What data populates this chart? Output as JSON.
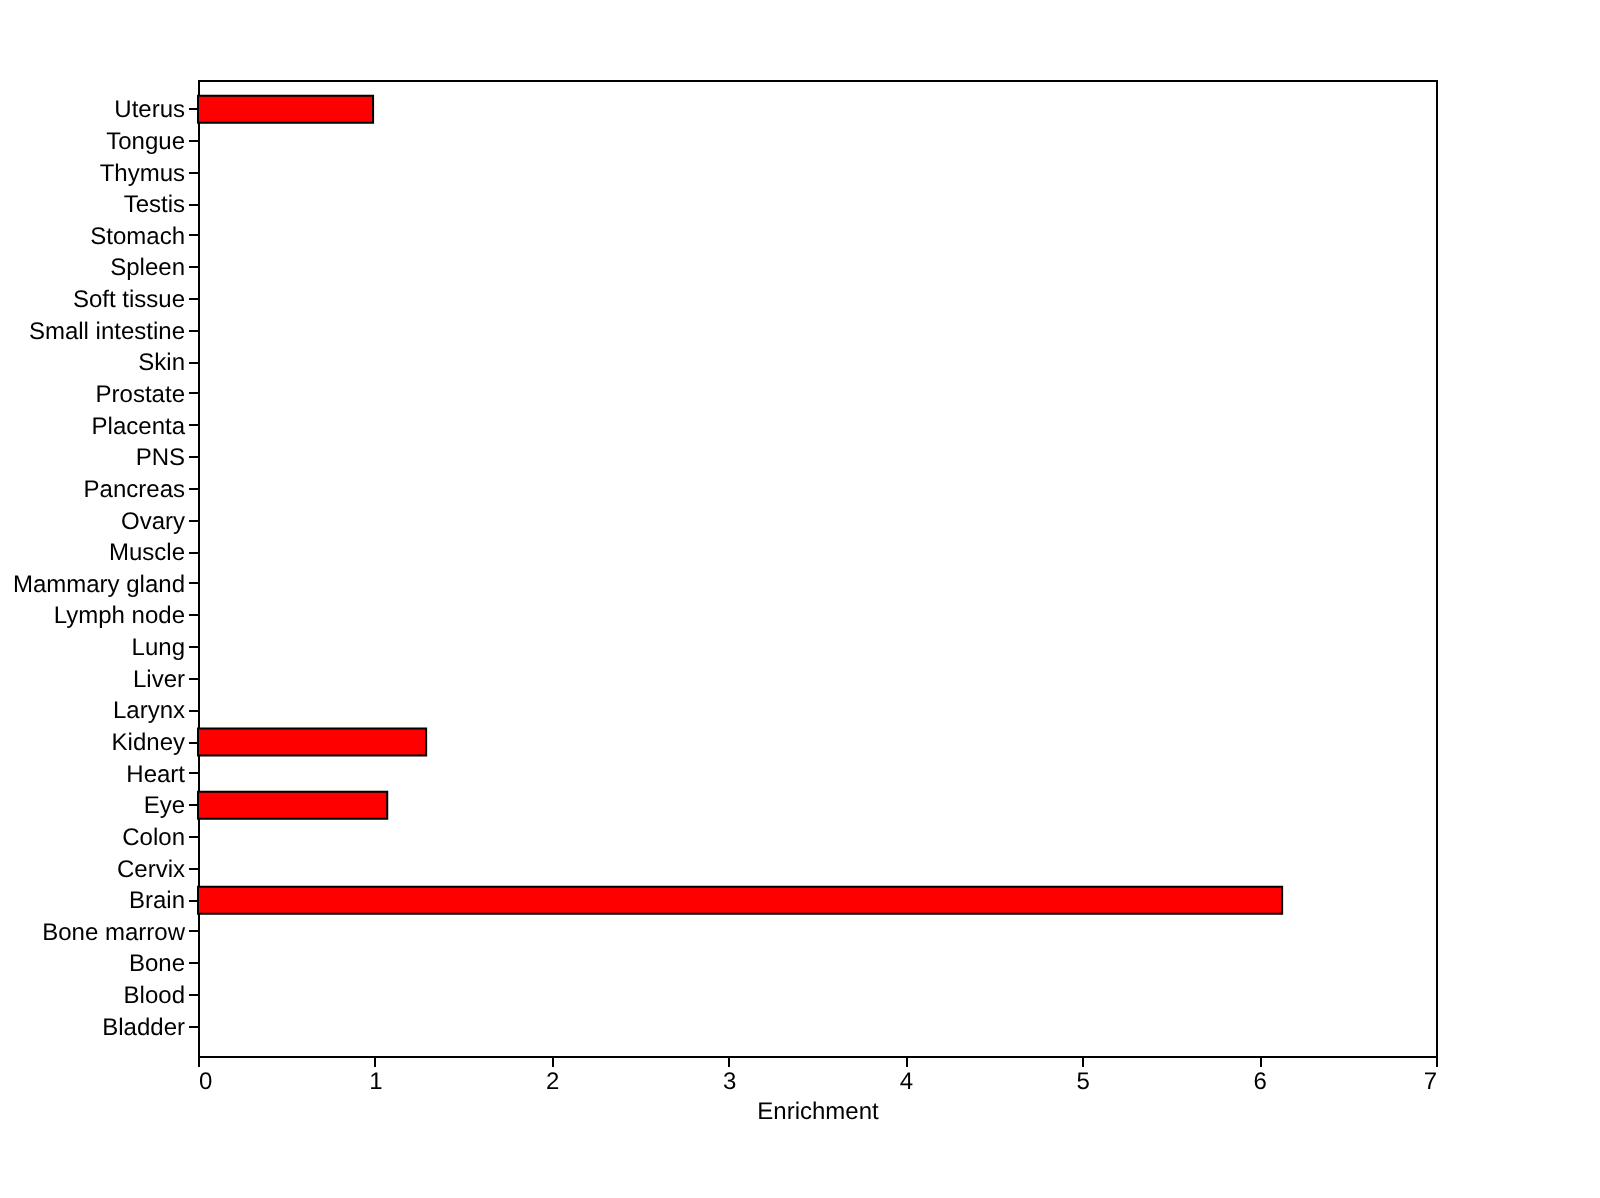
{
  "chart_data": {
    "type": "bar",
    "orientation": "horizontal",
    "xlabel": "Enrichment",
    "categories": [
      "Uterus",
      "Tongue",
      "Thymus",
      "Testis",
      "Stomach",
      "Spleen",
      "Soft tissue",
      "Small intestine",
      "Skin",
      "Prostate",
      "Placenta",
      "PNS",
      "Pancreas",
      "Ovary",
      "Muscle",
      "Mammary gland",
      "Lymph node",
      "Lung",
      "Liver",
      "Larynx",
      "Kidney",
      "Heart",
      "Eye",
      "Colon",
      "Cervix",
      "Brain",
      "Bone marrow",
      "Bone",
      "Blood",
      "Bladder"
    ],
    "values": [
      0.99,
      0,
      0,
      0,
      0,
      0,
      0,
      0,
      0,
      0,
      0,
      0,
      0,
      0,
      0,
      0,
      0,
      0,
      0,
      0,
      1.29,
      0,
      1.07,
      0,
      0,
      6.13,
      0,
      0,
      0,
      0
    ],
    "color": "#ff0000",
    "xlim": [
      0,
      7
    ],
    "xticks": [
      0,
      1,
      2,
      3,
      4,
      5,
      6,
      7
    ],
    "grid": false
  }
}
